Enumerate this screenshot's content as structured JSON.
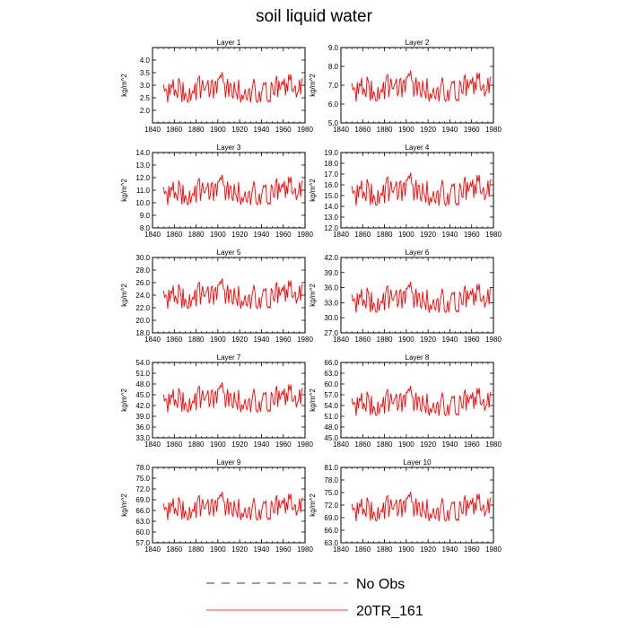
{
  "title": "soil liquid water",
  "legend": [
    {
      "label": "No Obs",
      "color": "#3333aa",
      "dash": true
    },
    {
      "label": "20TR_161",
      "color": "#ff0000",
      "dash": false
    }
  ],
  "chart_data": {
    "type": "line",
    "x_start": 1850,
    "x_end": 1978,
    "xlim": [
      1840,
      1980
    ],
    "xticks": [
      1840,
      1860,
      1880,
      1900,
      1920,
      1940,
      1960,
      1980
    ],
    "ylabel": "kg/m^2",
    "panels": [
      {
        "title": "Layer 1",
        "ylim": [
          1.5,
          4.5
        ],
        "yticks": [
          "2.0",
          "2.5",
          "3.0",
          "3.5",
          "4.0"
        ],
        "mean": 2.8,
        "amp": 0.55
      },
      {
        "title": "Layer 2",
        "ylim": [
          5.0,
          9.0
        ],
        "yticks": [
          "5.0",
          "6.0",
          "7.0",
          "8.0",
          "9.0"
        ],
        "mean": 6.8,
        "amp": 0.75
      },
      {
        "title": "Layer 3",
        "ylim": [
          8.0,
          14.0
        ],
        "yticks": [
          "8.0",
          "9.0",
          "10.0",
          "11.0",
          "12.0",
          "13.0",
          "14.0"
        ],
        "mean": 10.8,
        "amp": 1.1
      },
      {
        "title": "Layer 4",
        "ylim": [
          12.0,
          19.0
        ],
        "yticks": [
          "12.0",
          "13.0",
          "14.0",
          "15.0",
          "16.0",
          "17.0",
          "18.0",
          "19.0"
        ],
        "mean": 15.3,
        "amp": 1.4
      },
      {
        "title": "Layer 5",
        "ylim": [
          18.0,
          30.0
        ],
        "yticks": [
          "18.0",
          "20.0",
          "22.0",
          "24.0",
          "26.0",
          "28.0",
          "30.0"
        ],
        "mean": 23.8,
        "amp": 2.2
      },
      {
        "title": "Layer 6",
        "ylim": [
          27.0,
          42.0
        ],
        "yticks": [
          "27.0",
          "30.0",
          "33.0",
          "36.0",
          "39.0",
          "42.0"
        ],
        "mean": 33.5,
        "amp": 2.8
      },
      {
        "title": "Layer 7",
        "ylim": [
          33.0,
          54.0
        ],
        "yticks": [
          "33.0",
          "36.0",
          "39.0",
          "42.0",
          "45.0",
          "48.0",
          "51.0",
          "54.0"
        ],
        "mean": 43.5,
        "amp": 3.8
      },
      {
        "title": "Layer 8",
        "ylim": [
          45.0,
          66.0
        ],
        "yticks": [
          "45.0",
          "48.0",
          "51.0",
          "54.0",
          "57.0",
          "60.0",
          "63.0",
          "66.0"
        ],
        "mean": 54.5,
        "amp": 3.8
      },
      {
        "title": "Layer 9",
        "ylim": [
          57.0,
          78.0
        ],
        "yticks": [
          "57.0",
          "60.0",
          "63.0",
          "66.0",
          "69.0",
          "72.0",
          "75.0",
          "78.0"
        ],
        "mean": 66.5,
        "amp": 3.6
      },
      {
        "title": "Layer 10",
        "ylim": [
          63.0,
          81.0
        ],
        "yticks": [
          "63.0",
          "66.0",
          "69.0",
          "72.0",
          "75.0",
          "78.0",
          "81.0"
        ],
        "mean": 71.0,
        "amp": 3.2
      }
    ],
    "series": [
      {
        "name": "20TR_161",
        "color": "#ff0000"
      },
      {
        "name": "No Obs",
        "color": "#3333aa",
        "values": []
      }
    ]
  }
}
